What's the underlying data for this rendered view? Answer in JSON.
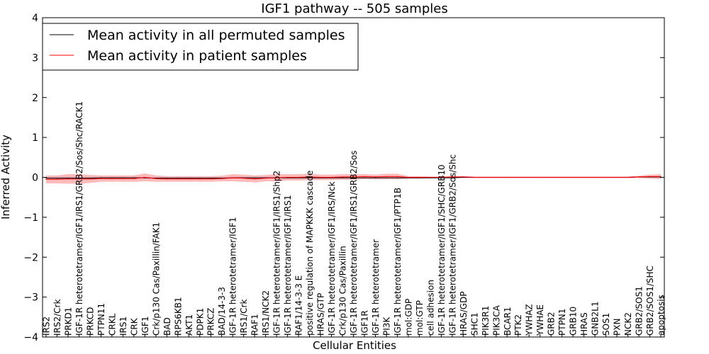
{
  "chart_data": {
    "type": "line",
    "title": "IGF1 pathway -- 505 samples",
    "xlabel": "Cellular Entities",
    "ylabel": "Inferred Activity",
    "ylim": [
      -4,
      4
    ],
    "yticks": [
      "−4",
      "−3",
      "−2",
      "−1",
      "0",
      "1",
      "2",
      "3",
      "4"
    ],
    "grid": false,
    "legend_position": "top-left",
    "categories": [
      "IRS2",
      "IRS2/Crk",
      "PRKD1",
      "IGF-1R heterotetramer/IGF1/IRS1/GRB2/Sos/Shc/RACK1",
      "PRKCD",
      "PTPN11",
      "CRKL",
      "IRS1",
      "CRK",
      "IGF1",
      "Crk/p130 Cas/Paxillin/FAK1",
      "BAD",
      "RPS6KB1",
      "AKT1",
      "PDPK1",
      "PRKCZ",
      "BAD/14-3-3",
      "IGF-1R heterotetramer/IGF1",
      "IRS1/Crk",
      "RAF1",
      "IRS1/NCK2",
      "IGF-1R heterotetramer/IGF1/IRS1/Shp2",
      "IGF-1R heterotetramer/IGF1/IRS1",
      "RAF1/14-3-3 E",
      "positive regulation of MAPKKK cascade",
      "HRAS/GTP",
      "IGF-1R heterotetramer/IGF1/IRS/Nck",
      "Crk/p130 Cas/Paxillin",
      "IGF-1R heterotetramer/IGF1/IRS1/GRB2/Sos",
      "IGF1R",
      "IGF-1R heterotetramer",
      "PI3K",
      "IGF-1R heterotetramer/IGF1/PTP1B",
      "mol:GDP",
      "mol:GTP",
      "cell adhesion",
      "IGF-1R heterotetramer/IGF1/SHC/GRB10",
      "IGF-1R heterotetramer/IGF1/GRB2/Sos/Shc",
      "HRAS/GDP",
      "SHC1",
      "PIK3R1",
      "PIK3CA",
      "BCAR1",
      "PTK2",
      "YWHAZ",
      "YWHAE",
      "GRB2",
      "PTPN1",
      "GRB10",
      "HRAS",
      "GNB2L1",
      "SOS1",
      "PXN",
      "NCK2",
      "GRB2/SOS1",
      "GRB2/SOS1/SHC",
      "apoptosis"
    ],
    "series": [
      {
        "name": "Mean activity in all permuted samples",
        "color": "#000000",
        "values": [
          -0.02,
          -0.02,
          -0.02,
          -0.02,
          -0.02,
          -0.01,
          -0.01,
          -0.01,
          -0.01,
          -0.01,
          -0.02,
          -0.02,
          -0.02,
          -0.02,
          -0.02,
          -0.02,
          -0.02,
          -0.01,
          -0.01,
          -0.01,
          -0.01,
          -0.01,
          -0.01,
          -0.01,
          -0.01,
          -0.01,
          -0.01,
          -0.01,
          -0.01,
          -0.01,
          -0.01,
          -0.01,
          -0.01,
          -0.01,
          -0.01,
          -0.01,
          -0.01,
          -0.01,
          0.0,
          0.0,
          0.0,
          0.0,
          0.0,
          0.0,
          0.0,
          0.0,
          0.0,
          0.0,
          0.0,
          0.0,
          0.0,
          0.0,
          0.0,
          0.0,
          0.01,
          0.01,
          0.01
        ],
        "band": [
          0.04,
          0.04,
          0.04,
          0.04,
          0.04,
          0.03,
          0.03,
          0.03,
          0.03,
          0.03,
          0.03,
          0.03,
          0.03,
          0.03,
          0.03,
          0.03,
          0.03,
          0.03,
          0.03,
          0.03,
          0.03,
          0.03,
          0.03,
          0.03,
          0.03,
          0.03,
          0.03,
          0.03,
          0.03,
          0.03,
          0.03,
          0.03,
          0.03,
          0.02,
          0.02,
          0.02,
          0.02,
          0.02,
          0.02,
          0.02,
          0.02,
          0.02,
          0.02,
          0.02,
          0.02,
          0.02,
          0.02,
          0.02,
          0.02,
          0.02,
          0.02,
          0.02,
          0.02,
          0.02,
          0.02,
          0.03,
          0.03
        ]
      },
      {
        "name": "Mean activity in patient samples",
        "color": "#ff0000",
        "values": [
          -0.05,
          -0.05,
          -0.04,
          -0.04,
          -0.04,
          -0.03,
          -0.03,
          -0.03,
          -0.03,
          0.0,
          -0.03,
          -0.04,
          -0.04,
          -0.04,
          -0.04,
          -0.04,
          -0.03,
          -0.01,
          -0.02,
          -0.04,
          -0.02,
          -0.01,
          0.0,
          0.0,
          0.01,
          0.0,
          0.0,
          0.01,
          0.01,
          0.02,
          0.01,
          0.02,
          0.02,
          0.0,
          0.0,
          0.0,
          0.0,
          0.01,
          0.01,
          0.0,
          0.0,
          0.0,
          0.0,
          0.0,
          0.0,
          0.0,
          0.0,
          0.0,
          0.0,
          0.0,
          0.0,
          0.0,
          0.0,
          0.0,
          0.01,
          0.02,
          0.02
        ],
        "band": [
          0.1,
          0.1,
          0.12,
          0.12,
          0.1,
          0.08,
          0.08,
          0.08,
          0.08,
          0.1,
          0.08,
          0.07,
          0.07,
          0.07,
          0.07,
          0.07,
          0.07,
          0.09,
          0.09,
          0.09,
          0.08,
          0.09,
          0.08,
          0.08,
          0.08,
          0.07,
          0.07,
          0.07,
          0.07,
          0.06,
          0.06,
          0.07,
          0.07,
          0.03,
          0.03,
          0.02,
          0.02,
          0.02,
          0.02,
          0.02,
          0.02,
          0.02,
          0.02,
          0.02,
          0.02,
          0.02,
          0.02,
          0.02,
          0.02,
          0.02,
          0.02,
          0.02,
          0.02,
          0.02,
          0.03,
          0.05,
          0.06
        ]
      }
    ]
  }
}
